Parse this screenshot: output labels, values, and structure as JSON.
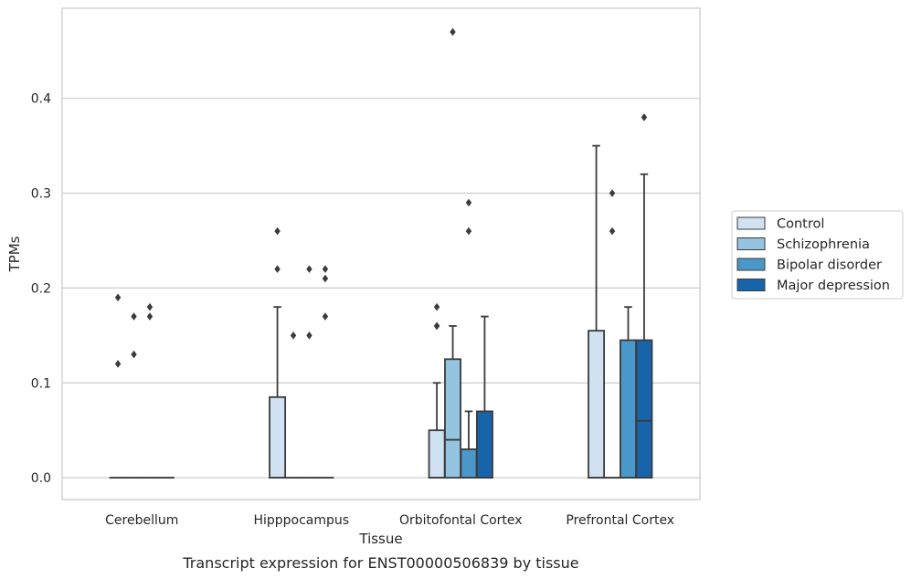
{
  "chart_data": {
    "type": "box",
    "title": "",
    "caption": "Transcript expression for ENST00000506839 by tissue",
    "xlabel": "Tissue",
    "ylabel": "TPMs",
    "ylim": [
      -0.023,
      0.495
    ],
    "yticks": [
      "0.0",
      "0.1",
      "0.2",
      "0.3",
      "0.4"
    ],
    "grid": "horizontal",
    "legend_position": "right",
    "categories": [
      "Cerebellum",
      "Hipppocampus",
      "Orbitofontal Cortex",
      "Prefrontal Cortex"
    ],
    "series": [
      {
        "name": "Control",
        "color": "#d0e1f2",
        "boxes": [
          {
            "whislo": 0.0,
            "q1": 0.0,
            "med": 0.0,
            "q3": 0.0,
            "whishi": 0.0,
            "fliers": [
              0.19,
              0.12
            ]
          },
          {
            "whislo": 0.0,
            "q1": 0.0,
            "med": 0.0,
            "q3": 0.085,
            "whishi": 0.18,
            "fliers": [
              0.26,
              0.22
            ]
          },
          {
            "whislo": 0.0,
            "q1": 0.0,
            "med": 0.0,
            "q3": 0.05,
            "whishi": 0.1,
            "fliers": [
              0.18,
              0.16,
              0.16
            ]
          },
          {
            "whislo": 0.0,
            "q1": 0.0,
            "med": 0.0,
            "q3": 0.155,
            "whishi": 0.35,
            "fliers": []
          }
        ]
      },
      {
        "name": "Schizophrenia",
        "color": "#94c4df",
        "boxes": [
          {
            "whislo": 0.0,
            "q1": 0.0,
            "med": 0.0,
            "q3": 0.0,
            "whishi": 0.0,
            "fliers": [
              0.17,
              0.13
            ]
          },
          {
            "whislo": 0.0,
            "q1": 0.0,
            "med": 0.0,
            "q3": 0.0,
            "whishi": 0.0,
            "fliers": [
              0.15
            ]
          },
          {
            "whislo": 0.0,
            "q1": 0.0,
            "med": 0.04,
            "q3": 0.125,
            "whishi": 0.16,
            "fliers": [
              0.47
            ]
          },
          {
            "whislo": 0.0,
            "q1": 0.0,
            "med": 0.0,
            "q3": 0.0,
            "whishi": 0.0,
            "fliers": [
              0.3,
              0.26
            ]
          }
        ]
      },
      {
        "name": "Bipolar disorder",
        "color": "#4a98c9",
        "boxes": [
          {
            "whislo": 0.0,
            "q1": 0.0,
            "med": 0.0,
            "q3": 0.0,
            "whishi": 0.0,
            "fliers": [
              0.18,
              0.17
            ]
          },
          {
            "whislo": 0.0,
            "q1": 0.0,
            "med": 0.0,
            "q3": 0.0,
            "whishi": 0.0,
            "fliers": [
              0.22,
              0.15
            ]
          },
          {
            "whislo": 0.0,
            "q1": 0.0,
            "med": 0.0,
            "q3": 0.03,
            "whishi": 0.07,
            "fliers": [
              0.29,
              0.26
            ]
          },
          {
            "whislo": 0.0,
            "q1": 0.0,
            "med": 0.0,
            "q3": 0.145,
            "whishi": 0.18,
            "fliers": []
          }
        ]
      },
      {
        "name": "Major depression",
        "color": "#1764ab",
        "boxes": [
          {
            "whislo": 0.0,
            "q1": 0.0,
            "med": 0.0,
            "q3": 0.0,
            "whishi": 0.0,
            "fliers": []
          },
          {
            "whislo": 0.0,
            "q1": 0.0,
            "med": 0.0,
            "q3": 0.0,
            "whishi": 0.0,
            "fliers": [
              0.22,
              0.21,
              0.17
            ]
          },
          {
            "whislo": 0.0,
            "q1": 0.0,
            "med": 0.0,
            "q3": 0.07,
            "whishi": 0.17,
            "fliers": []
          },
          {
            "whislo": 0.0,
            "q1": 0.0,
            "med": 0.06,
            "q3": 0.145,
            "whishi": 0.32,
            "fliers": [
              0.38
            ]
          }
        ]
      }
    ]
  }
}
